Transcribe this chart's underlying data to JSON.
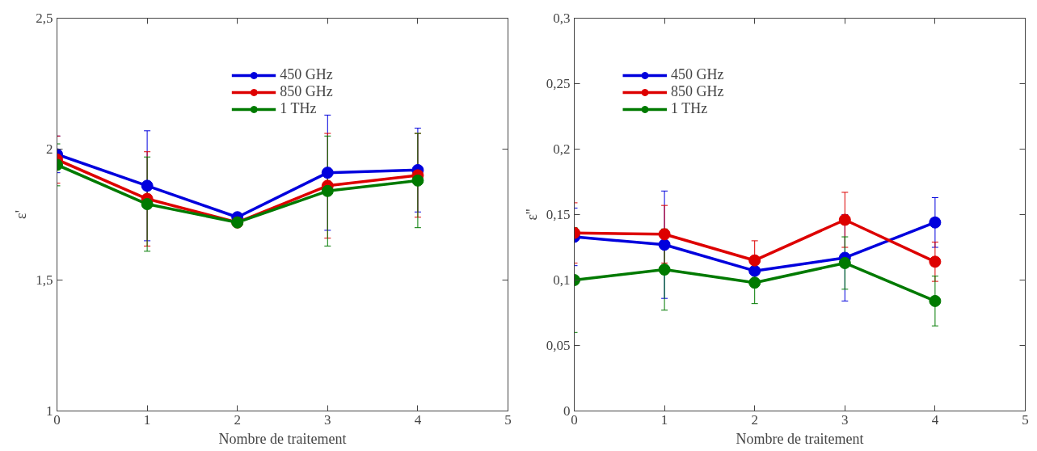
{
  "chart_data": [
    {
      "type": "line",
      "xlabel": "Nombre de traitement",
      "ylabel": "ε'",
      "x": [
        0,
        1,
        2,
        3,
        4
      ],
      "xlim": [
        0,
        5
      ],
      "xticks": [
        0,
        1,
        2,
        3,
        4,
        5
      ],
      "ylim": [
        1,
        2.5
      ],
      "yticks": [
        1,
        {
          "value": 1.5,
          "label": "1,5"
        },
        2,
        {
          "value": 2.5,
          "label": "2,5"
        }
      ],
      "marker": "circle",
      "legend": "top",
      "grid": false,
      "series": [
        {
          "name": "450 GHz",
          "color": "#0000dd",
          "values": [
            1.98,
            1.86,
            1.74,
            1.91,
            1.92
          ],
          "errors": [
            0.07,
            0.21,
            null,
            0.22,
            0.16
          ]
        },
        {
          "name": "850 GHz",
          "color": "#dd0000",
          "values": [
            1.96,
            1.81,
            1.72,
            1.86,
            1.9
          ],
          "errors": [
            0.09,
            0.18,
            null,
            0.2,
            0.16
          ]
        },
        {
          "name": "1 THz",
          "color": "#007a00",
          "values": [
            1.94,
            1.79,
            1.72,
            1.84,
            1.88
          ],
          "errors": [
            0.08,
            0.18,
            null,
            0.21,
            0.18
          ]
        }
      ]
    },
    {
      "type": "line",
      "xlabel": "Nombre de traitement",
      "ylabel": "ε''",
      "x": [
        0,
        1,
        2,
        3,
        4
      ],
      "xlim": [
        0,
        5
      ],
      "xticks": [
        0,
        1,
        2,
        3,
        4,
        5
      ],
      "ylim": [
        0,
        0.3
      ],
      "yticks": [
        0,
        {
          "value": 0.05,
          "label": "0,05"
        },
        {
          "value": 0.1,
          "label": "0,1"
        },
        {
          "value": 0.15,
          "label": "0,15"
        },
        {
          "value": 0.2,
          "label": "0,2"
        },
        {
          "value": 0.25,
          "label": "0,25"
        },
        {
          "value": 0.3,
          "label": "0,3"
        }
      ],
      "marker": "circle",
      "legend": "top left",
      "grid": false,
      "series": [
        {
          "name": "450 GHz",
          "color": "#0000dd",
          "values": [
            0.133,
            0.127,
            0.107,
            0.117,
            0.144
          ],
          "errors": [
            0.022,
            0.041,
            null,
            0.033,
            0.019
          ]
        },
        {
          "name": "850 GHz",
          "color": "#dd0000",
          "values": [
            0.136,
            0.135,
            0.115,
            0.146,
            0.114
          ],
          "errors": [
            0.023,
            0.022,
            0.015,
            0.021,
            0.015
          ]
        },
        {
          "name": "1 THz",
          "color": "#007a00",
          "values": [
            0.1,
            0.108,
            0.098,
            0.113,
            0.084
          ],
          "errors": [
            0.04,
            0.031,
            0.016,
            0.02,
            0.019
          ]
        }
      ]
    }
  ]
}
